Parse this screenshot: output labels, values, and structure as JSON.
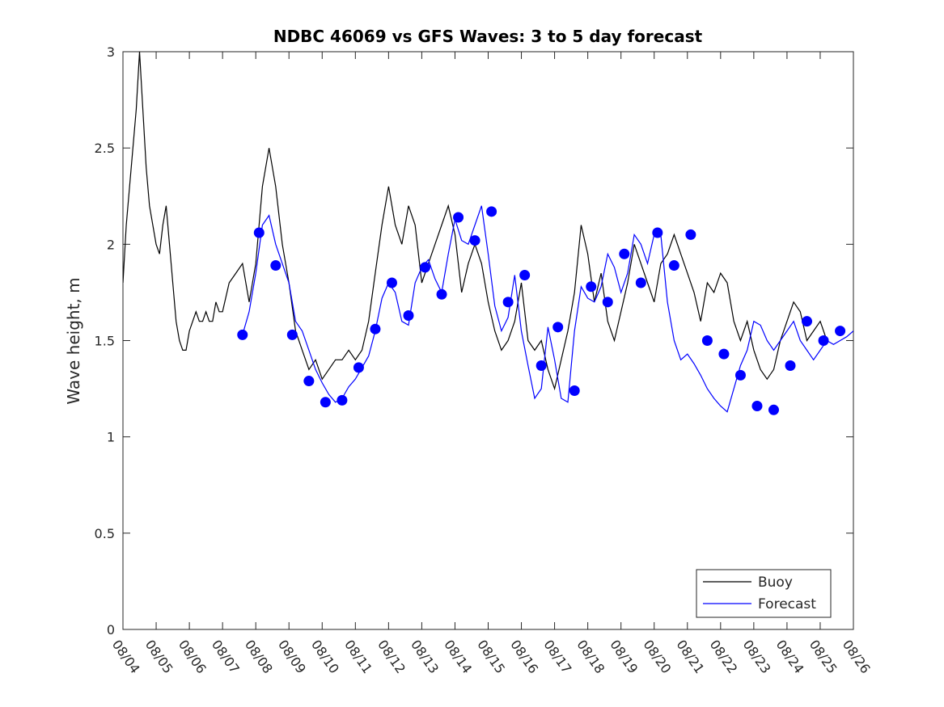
{
  "chart_data": {
    "type": "line",
    "title": "NDBC 46069 vs GFS Waves: 3 to 5 day forecast",
    "xlabel": "",
    "ylabel": "Wave height, m",
    "ylim": [
      0,
      3
    ],
    "xlim_days": [
      0,
      22
    ],
    "yticks": [
      0,
      0.5,
      1,
      1.5,
      2,
      2.5,
      3
    ],
    "ytick_labels": [
      "0",
      "0.5",
      "1",
      "1.5",
      "2",
      "2.5",
      "3"
    ],
    "xtick_labels": [
      "08/04",
      "08/05",
      "08/06",
      "08/07",
      "08/08",
      "08/09",
      "08/10",
      "08/11",
      "08/12",
      "08/13",
      "08/14",
      "08/15",
      "08/16",
      "08/17",
      "08/18",
      "08/19",
      "08/20",
      "08/21",
      "08/22",
      "08/23",
      "08/24",
      "08/25",
      "08/26"
    ],
    "legend": {
      "position": "bottom-right",
      "entries": [
        {
          "label": "Buoy",
          "color": "#000000",
          "style": "line"
        },
        {
          "label": "Forecast",
          "color": "#0000ff",
          "style": "line"
        }
      ]
    },
    "series": [
      {
        "name": "Buoy",
        "color": "#000000",
        "x": [
          0,
          0.1,
          0.2,
          0.3,
          0.4,
          0.5,
          0.6,
          0.7,
          0.8,
          0.9,
          1.0,
          1.1,
          1.2,
          1.3,
          1.4,
          1.5,
          1.6,
          1.7,
          1.8,
          1.9,
          2.0,
          2.1,
          2.2,
          2.3,
          2.4,
          2.5,
          2.6,
          2.7,
          2.8,
          2.9,
          3.0,
          3.2,
          3.4,
          3.6,
          3.8,
          4.0,
          4.2,
          4.4,
          4.6,
          4.8,
          5.0,
          5.2,
          5.4,
          5.6,
          5.8,
          6.0,
          6.2,
          6.4,
          6.6,
          6.8,
          7.0,
          7.2,
          7.4,
          7.6,
          7.8,
          8.0,
          8.2,
          8.4,
          8.6,
          8.8,
          9.0,
          9.2,
          9.4,
          9.6,
          9.8,
          10.0,
          10.2,
          10.4,
          10.6,
          10.8,
          11.0,
          11.2,
          11.4,
          11.6,
          11.8,
          12.0,
          12.2,
          12.4,
          12.6,
          12.8,
          13.0,
          13.2,
          13.4,
          13.6,
          13.8,
          14.0,
          14.2,
          14.4,
          14.6,
          14.8,
          15.0,
          15.2,
          15.4,
          15.6,
          15.8,
          16.0,
          16.2,
          16.4,
          16.6,
          16.8,
          17.0,
          17.2,
          17.4,
          17.6,
          17.8,
          18.0,
          18.2,
          18.4,
          18.6,
          18.8,
          19.0,
          19.2,
          19.4,
          19.6,
          19.8,
          20.0,
          20.2,
          20.4,
          20.6,
          20.8,
          21.0,
          21.2
        ],
        "values": [
          1.8,
          2.1,
          2.3,
          2.5,
          2.7,
          3.0,
          2.7,
          2.4,
          2.2,
          2.1,
          2.0,
          1.95,
          2.1,
          2.2,
          2.0,
          1.8,
          1.6,
          1.5,
          1.45,
          1.45,
          1.55,
          1.6,
          1.65,
          1.6,
          1.6,
          1.65,
          1.6,
          1.6,
          1.7,
          1.65,
          1.65,
          1.8,
          1.85,
          1.9,
          1.7,
          1.9,
          2.3,
          2.5,
          2.3,
          2.0,
          1.8,
          1.55,
          1.45,
          1.35,
          1.4,
          1.3,
          1.35,
          1.4,
          1.4,
          1.45,
          1.4,
          1.45,
          1.6,
          1.85,
          2.1,
          2.3,
          2.1,
          2.0,
          2.2,
          2.1,
          1.8,
          1.9,
          2.0,
          2.1,
          2.2,
          2.05,
          1.75,
          1.9,
          2.0,
          1.9,
          1.7,
          1.55,
          1.45,
          1.5,
          1.6,
          1.8,
          1.5,
          1.45,
          1.5,
          1.35,
          1.25,
          1.4,
          1.55,
          1.75,
          2.1,
          1.95,
          1.7,
          1.85,
          1.6,
          1.5,
          1.65,
          1.8,
          2.0,
          1.9,
          1.8,
          1.7,
          1.9,
          1.95,
          2.05,
          1.95,
          1.85,
          1.75,
          1.6,
          1.8,
          1.75,
          1.85,
          1.8,
          1.6,
          1.5,
          1.6,
          1.45,
          1.35,
          1.3,
          1.35,
          1.5,
          1.6,
          1.7,
          1.65,
          1.5,
          1.55,
          1.6,
          1.5
        ]
      },
      {
        "name": "Forecast",
        "color": "#0000ff",
        "x": [
          3.6,
          3.8,
          4.0,
          4.2,
          4.4,
          4.6,
          4.8,
          5.0,
          5.2,
          5.4,
          5.6,
          5.8,
          6.0,
          6.2,
          6.4,
          6.6,
          6.8,
          7.0,
          7.2,
          7.4,
          7.6,
          7.8,
          8.0,
          8.2,
          8.4,
          8.6,
          8.8,
          9.0,
          9.2,
          9.4,
          9.6,
          9.8,
          10.0,
          10.2,
          10.4,
          10.6,
          10.8,
          11.0,
          11.2,
          11.4,
          11.6,
          11.8,
          12.0,
          12.2,
          12.4,
          12.6,
          12.8,
          13.0,
          13.2,
          13.4,
          13.6,
          13.8,
          14.0,
          14.2,
          14.4,
          14.6,
          14.8,
          15.0,
          15.2,
          15.4,
          15.6,
          15.8,
          16.0,
          16.2,
          16.4,
          16.6,
          16.8,
          17.0,
          17.2,
          17.4,
          17.6,
          17.8,
          18.0,
          18.2,
          18.4,
          18.6,
          18.8,
          19.0,
          19.2,
          19.4,
          19.6,
          19.8,
          20.0,
          20.2,
          20.4,
          20.6,
          20.8,
          21.0,
          21.2,
          21.4,
          21.6,
          21.8,
          22.0
        ],
        "values": [
          1.53,
          1.65,
          1.85,
          2.1,
          2.15,
          2.0,
          1.9,
          1.8,
          1.6,
          1.55,
          1.45,
          1.35,
          1.28,
          1.22,
          1.18,
          1.2,
          1.26,
          1.3,
          1.36,
          1.42,
          1.55,
          1.72,
          1.8,
          1.75,
          1.6,
          1.58,
          1.8,
          1.88,
          1.92,
          1.82,
          1.75,
          1.95,
          2.13,
          2.02,
          2.0,
          2.1,
          2.2,
          1.95,
          1.68,
          1.55,
          1.62,
          1.84,
          1.55,
          1.37,
          1.2,
          1.25,
          1.57,
          1.4,
          1.2,
          1.18,
          1.55,
          1.78,
          1.72,
          1.7,
          1.78,
          1.95,
          1.88,
          1.75,
          1.85,
          2.05,
          2.0,
          1.9,
          2.05,
          2.05,
          1.7,
          1.5,
          1.4,
          1.43,
          1.38,
          1.32,
          1.25,
          1.2,
          1.16,
          1.13,
          1.25,
          1.37,
          1.45,
          1.6,
          1.58,
          1.5,
          1.45,
          1.5,
          1.55,
          1.6,
          1.5,
          1.45,
          1.4,
          1.45,
          1.5,
          1.48,
          1.5,
          1.52,
          1.55
        ]
      }
    ],
    "markers": {
      "name": "Forecast points",
      "color": "#0000ff",
      "x": [
        3.6,
        4.1,
        4.6,
        5.1,
        5.6,
        6.1,
        6.6,
        7.1,
        7.6,
        8.1,
        8.6,
        9.1,
        9.6,
        10.1,
        10.6,
        11.1,
        11.6,
        12.1,
        12.6,
        13.1,
        13.6,
        14.1,
        14.6,
        15.1,
        15.6,
        16.1,
        16.6,
        17.1,
        17.6,
        18.1,
        18.6,
        19.1,
        19.6,
        20.1,
        20.6,
        21.1,
        21.6
      ],
      "values": [
        1.53,
        2.06,
        1.89,
        1.53,
        1.29,
        1.18,
        1.19,
        1.36,
        1.56,
        1.8,
        1.63,
        1.88,
        1.74,
        2.14,
        2.02,
        2.17,
        1.7,
        1.84,
        1.37,
        1.57,
        1.24,
        1.78,
        1.7,
        1.95,
        1.8,
        2.06,
        1.89,
        2.05,
        1.5,
        1.43,
        1.32,
        1.16,
        1.14,
        1.37,
        1.6,
        1.5,
        1.55
      ]
    }
  }
}
